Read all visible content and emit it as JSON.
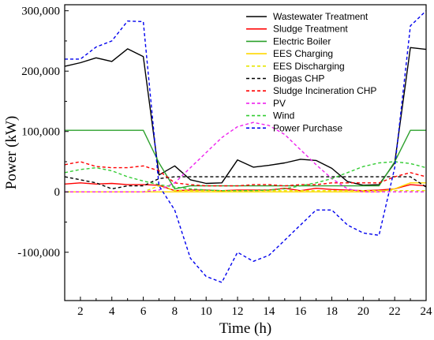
{
  "chart_data": {
    "type": "line",
    "title": "",
    "xlabel": "Time (h)",
    "ylabel": "Power (kW)",
    "xlim": [
      1,
      24
    ],
    "ylim": [
      -180000,
      310000
    ],
    "x_ticks": [
      2,
      4,
      6,
      8,
      10,
      12,
      14,
      16,
      18,
      20,
      22,
      24
    ],
    "x_tick_labels": [
      "2",
      "4",
      "6",
      "8",
      "10",
      "12",
      "14",
      "16",
      "18",
      "20",
      "22",
      "24"
    ],
    "y_ticks": [
      -100000,
      0,
      100000,
      200000,
      300000
    ],
    "y_tick_labels": [
      "-100,000",
      "0",
      "100,000",
      "200,000",
      "300,000"
    ],
    "grid": false,
    "legend_position": "top-right",
    "x": [
      1,
      2,
      3,
      4,
      5,
      6,
      7,
      8,
      9,
      10,
      11,
      12,
      13,
      14,
      15,
      16,
      17,
      18,
      19,
      20,
      21,
      22,
      23,
      24
    ],
    "series": [
      {
        "name": "Wastewater Treatment",
        "color": "#000000",
        "dash": "solid",
        "values": [
          208000,
          214000,
          222000,
          216000,
          237000,
          224000,
          28000,
          43000,
          20000,
          14000,
          15000,
          53000,
          41000,
          44000,
          48000,
          54000,
          52000,
          39000,
          17000,
          11000,
          12000,
          48000,
          239000,
          236000
        ]
      },
      {
        "name": "Sludge Treatment",
        "color": "#ff0000",
        "dash": "solid",
        "values": [
          13000,
          15000,
          13000,
          14000,
          12000,
          12000,
          11000,
          2000,
          3000,
          3000,
          2000,
          3000,
          3000,
          3000,
          6000,
          2000,
          6000,
          4000,
          3000,
          2000,
          3000,
          5000,
          12000,
          10000
        ]
      },
      {
        "name": "Electric Boiler",
        "color": "#2ca02c",
        "dash": "solid",
        "values": [
          102000,
          102000,
          102000,
          102000,
          102000,
          102000,
          48000,
          5000,
          10000,
          10000,
          10000,
          10000,
          10000,
          10000,
          10000,
          10000,
          10000,
          10000,
          10000,
          10000,
          10000,
          50000,
          102000,
          102000
        ]
      },
      {
        "name": "EES Charging",
        "color": "#ffd700",
        "dash": "solid",
        "values": [
          0,
          0,
          0,
          0,
          0,
          0,
          0,
          0,
          0,
          0,
          0,
          0,
          0,
          0,
          0,
          0,
          0,
          0,
          0,
          0,
          0,
          5000,
          15000,
          15000
        ]
      },
      {
        "name": "EES Discharging",
        "color": "#e6e600",
        "dash": "dashed",
        "values": [
          0,
          0,
          0,
          0,
          0,
          0,
          10000,
          2000,
          2000,
          2000,
          2000,
          2000,
          2000,
          2000,
          2000,
          2000,
          2000,
          2000,
          2000,
          2000,
          2000,
          2000,
          2000,
          2000
        ]
      },
      {
        "name": "Biogas CHP",
        "color": "#000000",
        "dash": "dashed",
        "values": [
          25000,
          20000,
          15000,
          5000,
          10000,
          10000,
          22000,
          25000,
          25000,
          25000,
          25000,
          25000,
          25000,
          25000,
          25000,
          25000,
          25000,
          25000,
          25000,
          25000,
          25000,
          25000,
          25000,
          8000
        ]
      },
      {
        "name": "Sludge Incineration CHP",
        "color": "#ff0000",
        "dash": "dashed",
        "values": [
          45000,
          50000,
          42000,
          40000,
          40000,
          43000,
          35000,
          15000,
          12000,
          10000,
          10000,
          10000,
          12000,
          12000,
          10000,
          12000,
          12000,
          15000,
          15000,
          15000,
          15000,
          25000,
          32000,
          25000
        ]
      },
      {
        "name": "PV",
        "color": "#ee22ee",
        "dash": "dashed",
        "values": [
          0,
          0,
          0,
          0,
          0,
          0,
          3000,
          15000,
          40000,
          65000,
          90000,
          108000,
          115000,
          110000,
          95000,
          70000,
          45000,
          22000,
          5000,
          0,
          0,
          0,
          0,
          0
        ]
      },
      {
        "name": "Wind",
        "color": "#33cc33",
        "dash": "dashed",
        "values": [
          32000,
          37000,
          40000,
          35000,
          25000,
          18000,
          12000,
          8000,
          5000,
          3000,
          2000,
          2000,
          2000,
          3000,
          5000,
          10000,
          15000,
          22000,
          32000,
          42000,
          48000,
          50000,
          47000,
          40000
        ]
      },
      {
        "name": "Power Purchase",
        "color": "#0000ee",
        "dash": "dashed",
        "values": [
          220000,
          220000,
          240000,
          250000,
          283000,
          282000,
          10000,
          -30000,
          -110000,
          -140000,
          -150000,
          -100000,
          -115000,
          -105000,
          -80000,
          -55000,
          -30000,
          -30000,
          -55000,
          -68000,
          -72000,
          40000,
          275000,
          300000
        ]
      }
    ]
  }
}
